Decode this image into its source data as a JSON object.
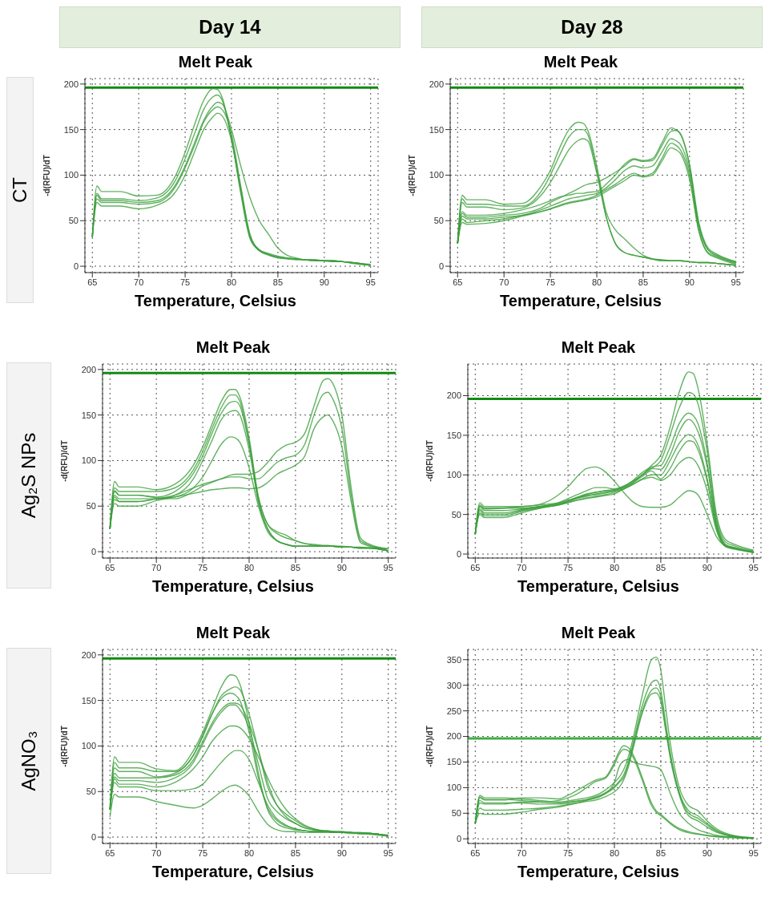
{
  "chart_data": [
    {
      "type": "line",
      "title": "Melt Peak",
      "xlabel": "Temperature, Celsius",
      "ylabel": "-d(RFU)/dT",
      "annotations": [
        "Day 14",
        "CT"
      ],
      "xlim": [
        64.2,
        95.8
      ],
      "xticks": [
        65,
        70,
        75,
        80,
        85,
        90,
        95
      ],
      "ylim": [
        -7,
        206
      ],
      "yticks": [
        0,
        50,
        100,
        150,
        200
      ],
      "grid": true,
      "marker": "none",
      "line_style": "solid",
      "ref_lines": [
        {
          "axis": "y",
          "value": 196,
          "color": "#138a13"
        }
      ],
      "x": [
        65,
        65.5,
        66,
        68,
        70,
        72,
        74,
        75,
        76,
        77,
        78,
        78.5,
        79,
        80,
        81,
        82,
        83,
        84,
        85,
        86,
        87,
        88,
        88.5,
        89,
        90,
        91,
        92,
        93,
        95
      ],
      "series": [
        {
          "color": "#3c9f3c",
          "values": [
            32,
            88,
            82,
            82,
            77,
            78,
            100,
            125,
            155,
            182,
            195,
            194,
            185,
            140,
            80,
            30,
            17,
            13,
            10,
            9,
            8,
            7,
            7,
            7,
            6,
            6,
            5,
            4,
            1
          ]
        },
        {
          "color": "#3c9f3c",
          "values": [
            32,
            80,
            74,
            74,
            72,
            75,
            95,
            118,
            145,
            172,
            186,
            188,
            182,
            140,
            82,
            32,
            18,
            14,
            11,
            9,
            8,
            7,
            7,
            7,
            6,
            6,
            5,
            4,
            1
          ]
        },
        {
          "color": "#3c9f3c",
          "values": [
            32,
            78,
            72,
            72,
            70,
            72,
            90,
            110,
            135,
            160,
            176,
            180,
            178,
            150,
            110,
            75,
            50,
            35,
            20,
            12,
            9,
            7,
            7,
            7,
            6,
            6,
            5,
            4,
            2
          ]
        },
        {
          "color": "#3c9f3c",
          "values": [
            32,
            74,
            70,
            70,
            68,
            70,
            88,
            108,
            132,
            158,
            172,
            175,
            172,
            145,
            88,
            35,
            18,
            13,
            10,
            9,
            8,
            7,
            7,
            6,
            6,
            5,
            5,
            4,
            1
          ]
        },
        {
          "color": "#3c9f3c",
          "values": [
            32,
            70,
            66,
            66,
            63,
            67,
            82,
            100,
            125,
            150,
            164,
            168,
            165,
            138,
            85,
            33,
            17,
            12,
            9,
            8,
            7,
            7,
            6,
            6,
            6,
            5,
            5,
            3,
            1
          ]
        }
      ]
    },
    {
      "type": "line",
      "title": "Melt Peak",
      "xlabel": "Temperature, Celsius",
      "ylabel": "-d(RFU)/dT",
      "annotations": [
        "Day 28"
      ],
      "xlim": [
        64.2,
        95.8
      ],
      "xticks": [
        65,
        70,
        75,
        80,
        85,
        90,
        95
      ],
      "ylim": [
        -7,
        206
      ],
      "yticks": [
        0,
        50,
        100,
        150,
        200
      ],
      "grid": true,
      "marker": "none",
      "line_style": "solid",
      "ref_lines": [
        {
          "axis": "y",
          "value": 196,
          "color": "#138a13"
        }
      ],
      "x": [
        65,
        65.5,
        66,
        68,
        70,
        72,
        74,
        75,
        76,
        77,
        78,
        78.5,
        79,
        80,
        81,
        82,
        83,
        84,
        85,
        86,
        87,
        88,
        88.5,
        89,
        90,
        91,
        92,
        93,
        95
      ],
      "series": [
        {
          "color": "#3c9f3c",
          "values": [
            25,
            78,
            73,
            73,
            68,
            69,
            88,
            105,
            130,
            150,
            158,
            157,
            150,
            110,
            60,
            40,
            30,
            20,
            12,
            8,
            6,
            6,
            6,
            6,
            5,
            4,
            4,
            3,
            1
          ]
        },
        {
          "color": "#3c9f3c",
          "values": [
            25,
            74,
            68,
            68,
            66,
            66,
            82,
            100,
            122,
            142,
            150,
            150,
            145,
            105,
            55,
            25,
            15,
            12,
            10,
            8,
            7,
            6,
            6,
            6,
            5,
            4,
            4,
            3,
            1
          ]
        },
        {
          "color": "#3c9f3c",
          "values": [
            25,
            70,
            65,
            65,
            62,
            64,
            78,
            92,
            110,
            128,
            138,
            140,
            138,
            102,
            55,
            25,
            15,
            12,
            10,
            8,
            7,
            6,
            6,
            6,
            5,
            4,
            4,
            3,
            1
          ]
        },
        {
          "color": "#3c9f3c",
          "values": [
            25,
            60,
            56,
            56,
            58,
            62,
            68,
            72,
            76,
            78,
            80,
            80,
            81,
            82,
            90,
            100,
            112,
            118,
            116,
            118,
            135,
            152,
            150,
            146,
            110,
            45,
            18,
            12,
            5
          ]
        },
        {
          "color": "#3c9f3c",
          "values": [
            25,
            58,
            54,
            54,
            56,
            58,
            64,
            70,
            75,
            80,
            85,
            88,
            90,
            92,
            97,
            103,
            110,
            117,
            115,
            116,
            132,
            148,
            149,
            145,
            112,
            48,
            20,
            13,
            5
          ]
        },
        {
          "color": "#3c9f3c",
          "values": [
            25,
            55,
            52,
            52,
            54,
            56,
            62,
            66,
            70,
            74,
            76,
            77,
            78,
            80,
            86,
            95,
            105,
            110,
            108,
            110,
            125,
            140,
            138,
            134,
            105,
            45,
            18,
            11,
            4
          ]
        },
        {
          "color": "#3c9f3c",
          "values": [
            25,
            52,
            48,
            50,
            52,
            56,
            60,
            63,
            67,
            70,
            72,
            73,
            74,
            78,
            84,
            90,
            97,
            102,
            99,
            102,
            118,
            135,
            133,
            128,
            100,
            40,
            15,
            10,
            3
          ]
        },
        {
          "color": "#3c9f3c",
          "values": [
            25,
            48,
            46,
            47,
            50,
            55,
            60,
            63,
            66,
            69,
            71,
            72,
            73,
            76,
            82,
            88,
            94,
            100,
            98,
            100,
            115,
            130,
            128,
            124,
            95,
            38,
            14,
            9,
            2
          ]
        }
      ]
    },
    {
      "type": "line",
      "title": "Melt Peak",
      "xlabel": "Temperature, Celsius",
      "ylabel": "-d(RFU)/dT",
      "annotations": [
        "Ag₂S NPs"
      ],
      "xlim": [
        64.2,
        95.8
      ],
      "xticks": [
        65,
        70,
        75,
        80,
        85,
        90,
        95
      ],
      "ylim": [
        -7,
        206
      ],
      "yticks": [
        0,
        50,
        100,
        150,
        200
      ],
      "grid": true,
      "marker": "none",
      "line_style": "solid",
      "ref_lines": [
        {
          "axis": "y",
          "value": 196,
          "color": "#138a13"
        }
      ],
      "x": [
        65,
        65.5,
        66,
        68,
        70,
        72,
        74,
        75,
        76,
        77,
        78,
        78.5,
        79,
        80,
        81,
        82,
        83,
        84,
        85,
        86,
        87,
        88,
        88.5,
        89,
        90,
        91,
        92,
        93,
        95
      ],
      "series": [
        {
          "color": "#3c9f3c",
          "values": [
            25,
            77,
            71,
            71,
            68,
            74,
            95,
            115,
            140,
            165,
            178,
            178,
            170,
            125,
            60,
            30,
            20,
            15,
            12,
            9,
            8,
            7,
            7,
            6,
            6,
            5,
            5,
            4,
            1
          ]
        },
        {
          "color": "#3c9f3c",
          "values": [
            25,
            70,
            66,
            66,
            66,
            70,
            90,
            110,
            135,
            158,
            172,
            172,
            165,
            120,
            55,
            25,
            12,
            8,
            6,
            6,
            6,
            6,
            6,
            6,
            5,
            5,
            4,
            4,
            1
          ]
        },
        {
          "color": "#3c9f3c",
          "values": [
            25,
            67,
            62,
            62,
            60,
            66,
            86,
            105,
            130,
            152,
            164,
            165,
            160,
            118,
            60,
            30,
            22,
            18,
            12,
            9,
            7,
            6,
            6,
            6,
            5,
            5,
            4,
            4,
            1
          ]
        },
        {
          "color": "#3c9f3c",
          "values": [
            25,
            62,
            58,
            58,
            58,
            62,
            80,
            100,
            122,
            145,
            154,
            155,
            150,
            112,
            55,
            25,
            12,
            8,
            6,
            6,
            6,
            6,
            6,
            6,
            5,
            5,
            4,
            4,
            1
          ]
        },
        {
          "color": "#3c9f3c",
          "values": [
            25,
            57,
            55,
            55,
            58,
            60,
            70,
            82,
            100,
            118,
            126,
            125,
            120,
            92,
            50,
            22,
            12,
            8,
            6,
            6,
            6,
            6,
            6,
            6,
            5,
            5,
            4,
            4,
            1
          ]
        },
        {
          "color": "#3c9f3c",
          "values": [
            25,
            66,
            62,
            62,
            59,
            58,
            66,
            72,
            76,
            80,
            84,
            85,
            85,
            85,
            88,
            98,
            110,
            117,
            120,
            130,
            160,
            188,
            190,
            185,
            150,
            70,
            15,
            8,
            3
          ]
        },
        {
          "color": "#3c9f3c",
          "values": [
            25,
            60,
            55,
            55,
            58,
            62,
            70,
            74,
            77,
            80,
            82,
            82,
            82,
            80,
            80,
            88,
            98,
            103,
            106,
            118,
            150,
            173,
            175,
            168,
            135,
            62,
            12,
            7,
            3
          ]
        },
        {
          "color": "#3c9f3c",
          "values": [
            25,
            53,
            50,
            50,
            56,
            60,
            64,
            66,
            68,
            69,
            70,
            70,
            70,
            69,
            70,
            76,
            85,
            90,
            95,
            105,
            135,
            148,
            150,
            144,
            115,
            55,
            10,
            6,
            3
          ]
        }
      ]
    },
    {
      "type": "line",
      "title": "Melt Peak",
      "xlabel": "Temperature, Celsius",
      "ylabel": "-d(RFU)/dT",
      "xlim": [
        64.2,
        95.8
      ],
      "xticks": [
        65,
        70,
        75,
        80,
        85,
        90,
        95
      ],
      "ylim": [
        -5,
        240
      ],
      "yticks": [
        0,
        50,
        100,
        150,
        200
      ],
      "grid": true,
      "marker": "none",
      "line_style": "solid",
      "ref_lines": [
        {
          "axis": "y",
          "value": 196,
          "color": "#138a13"
        }
      ],
      "x": [
        65,
        65.5,
        66,
        68,
        70,
        72,
        74,
        75,
        76,
        77,
        78,
        78.5,
        79,
        80,
        81,
        82,
        83,
        84,
        85,
        86,
        87,
        88,
        88.5,
        89,
        90,
        91,
        92,
        93,
        95
      ],
      "series": [
        {
          "color": "#3c9f3c",
          "values": [
            25,
            60,
            57,
            58,
            60,
            63,
            75,
            85,
            98,
            108,
            110,
            108,
            104,
            92,
            78,
            66,
            60,
            59,
            59,
            62,
            72,
            80,
            79,
            75,
            50,
            22,
            10,
            7,
            2
          ]
        },
        {
          "color": "#3c9f3c",
          "values": [
            25,
            65,
            60,
            60,
            60,
            62,
            65,
            68,
            72,
            76,
            78,
            79,
            80,
            82,
            86,
            92,
            100,
            112,
            125,
            160,
            205,
            230,
            228,
            210,
            140,
            50,
            18,
            12,
            5
          ]
        },
        {
          "color": "#3c9f3c",
          "values": [
            25,
            62,
            58,
            58,
            58,
            60,
            64,
            67,
            71,
            74,
            76,
            77,
            78,
            80,
            85,
            92,
            100,
            108,
            118,
            150,
            185,
            204,
            202,
            190,
            130,
            45,
            15,
            10,
            4
          ]
        },
        {
          "color": "#3c9f3c",
          "values": [
            25,
            60,
            55,
            55,
            57,
            60,
            63,
            66,
            70,
            73,
            75,
            76,
            77,
            80,
            85,
            93,
            103,
            110,
            112,
            135,
            165,
            178,
            175,
            165,
            115,
            40,
            12,
            8,
            3
          ]
        },
        {
          "color": "#3c9f3c",
          "values": [
            25,
            57,
            52,
            52,
            56,
            60,
            65,
            70,
            75,
            80,
            84,
            84,
            84,
            82,
            84,
            90,
            100,
            108,
            107,
            125,
            155,
            170,
            166,
            155,
            110,
            38,
            12,
            8,
            3
          ]
        },
        {
          "color": "#3c9f3c",
          "values": [
            25,
            55,
            50,
            50,
            55,
            59,
            62,
            65,
            68,
            70,
            72,
            73,
            74,
            76,
            82,
            88,
            95,
            100,
            100,
            118,
            140,
            151,
            148,
            138,
            95,
            35,
            10,
            7,
            2
          ]
        },
        {
          "color": "#3c9f3c",
          "values": [
            25,
            52,
            48,
            48,
            54,
            58,
            63,
            67,
            71,
            75,
            78,
            79,
            80,
            80,
            83,
            90,
            98,
            105,
            95,
            108,
            130,
            143,
            142,
            132,
            92,
            32,
            10,
            7,
            2
          ]
        },
        {
          "color": "#3c9f3c",
          "values": [
            25,
            50,
            46,
            46,
            52,
            58,
            62,
            65,
            68,
            71,
            73,
            74,
            75,
            78,
            82,
            88,
            94,
            97,
            93,
            100,
            115,
            122,
            120,
            112,
            80,
            30,
            9,
            6,
            2
          ]
        }
      ]
    },
    {
      "type": "line",
      "title": "Melt Peak",
      "xlabel": "Temperature, Celsius",
      "ylabel": "-d(RFU)/dT",
      "annotations": [
        "AgNO₃"
      ],
      "xlim": [
        64.2,
        95.8
      ],
      "xticks": [
        65,
        70,
        75,
        80,
        85,
        90,
        95
      ],
      "ylim": [
        -7,
        206
      ],
      "yticks": [
        0,
        50,
        100,
        150,
        200
      ],
      "grid": true,
      "marker": "none",
      "line_style": "solid",
      "ref_lines": [
        {
          "axis": "y",
          "value": 196,
          "color": "#138a13"
        }
      ],
      "x": [
        65,
        65.5,
        66,
        68,
        70,
        72,
        74,
        75,
        76,
        77,
        78,
        78.5,
        79,
        80,
        81,
        82,
        83,
        84,
        85,
        86,
        87,
        88,
        88.5,
        89,
        90,
        91,
        92,
        93,
        95
      ],
      "series": [
        {
          "color": "#3c9f3c",
          "values": [
            30,
            88,
            82,
            82,
            75,
            73,
            95,
            115,
            140,
            165,
            178,
            177,
            168,
            125,
            70,
            30,
            15,
            10,
            8,
            7,
            6,
            6,
            6,
            5,
            5,
            5,
            4,
            4,
            1
          ]
        },
        {
          "color": "#3c9f3c",
          "values": [
            30,
            82,
            76,
            76,
            72,
            72,
            90,
            110,
            135,
            155,
            163,
            165,
            162,
            135,
            95,
            55,
            35,
            25,
            18,
            12,
            9,
            7,
            7,
            6,
            6,
            5,
            5,
            4,
            2
          ]
        },
        {
          "color": "#3c9f3c",
          "values": [
            30,
            76,
            72,
            72,
            66,
            70,
            90,
            112,
            135,
            152,
            158,
            156,
            150,
            115,
            65,
            32,
            18,
            12,
            9,
            7,
            6,
            6,
            6,
            5,
            5,
            5,
            4,
            4,
            1
          ]
        },
        {
          "color": "#3c9f3c",
          "values": [
            30,
            70,
            65,
            65,
            65,
            68,
            85,
            105,
            125,
            140,
            147,
            147,
            145,
            125,
            95,
            60,
            35,
            22,
            15,
            10,
            8,
            7,
            6,
            6,
            5,
            5,
            4,
            4,
            1
          ]
        },
        {
          "color": "#3c9f3c",
          "values": [
            30,
            66,
            62,
            62,
            60,
            65,
            82,
            102,
            122,
            137,
            145,
            145,
            140,
            120,
            80,
            42,
            28,
            20,
            15,
            10,
            8,
            6,
            6,
            6,
            5,
            5,
            4,
            4,
            1
          ]
        },
        {
          "color": "#3c9f3c",
          "values": [
            30,
            64,
            58,
            58,
            55,
            60,
            75,
            88,
            105,
            116,
            122,
            122,
            120,
            108,
            88,
            65,
            45,
            30,
            20,
            13,
            9,
            7,
            7,
            6,
            6,
            5,
            5,
            4,
            2
          ]
        },
        {
          "color": "#3c9f3c",
          "values": [
            30,
            60,
            55,
            55,
            51,
            51,
            53,
            58,
            70,
            82,
            92,
            95,
            95,
            85,
            60,
            35,
            20,
            13,
            9,
            7,
            6,
            6,
            6,
            5,
            5,
            5,
            4,
            4,
            1
          ]
        },
        {
          "color": "#3c9f3c",
          "values": [
            22,
            47,
            44,
            44,
            39,
            35,
            32,
            35,
            42,
            50,
            56,
            57,
            55,
            45,
            28,
            14,
            8,
            6,
            6,
            5,
            5,
            5,
            5,
            5,
            5,
            4,
            4,
            3,
            1
          ]
        }
      ]
    },
    {
      "type": "line",
      "title": "Melt Peak",
      "xlabel": "Temperature, Celsius",
      "ylabel": "-d(RFU)/dT",
      "xlim": [
        64.2,
        95.8
      ],
      "xticks": [
        65,
        70,
        75,
        80,
        85,
        90,
        95
      ],
      "ylim": [
        -9,
        370
      ],
      "yticks": [
        0,
        50,
        100,
        150,
        200,
        250,
        300,
        350
      ],
      "grid": true,
      "marker": "none",
      "line_style": "solid",
      "ref_lines": [
        {
          "axis": "y",
          "value": 196,
          "color": "#3fae3f"
        }
      ],
      "x": [
        65,
        65.5,
        66,
        68,
        70,
        72,
        74,
        75,
        76,
        77,
        78,
        79,
        80,
        80.5,
        81,
        81.5,
        82,
        83,
        84,
        84.5,
        85,
        85.5,
        86,
        87,
        88,
        89,
        90,
        91,
        93,
        95
      ],
      "series": [
        {
          "color": "#3c9f3c",
          "values": [
            30,
            85,
            80,
            80,
            78,
            75,
            72,
            74,
            77,
            80,
            85,
            95,
            110,
            120,
            135,
            160,
            195,
            280,
            350,
            355,
            330,
            260,
            190,
            100,
            65,
            55,
            35,
            20,
            6,
            2
          ]
        },
        {
          "color": "#3c9f3c",
          "values": [
            30,
            82,
            77,
            77,
            75,
            72,
            70,
            72,
            74,
            77,
            82,
            90,
            102,
            112,
            125,
            150,
            185,
            260,
            305,
            310,
            290,
            230,
            170,
            90,
            55,
            45,
            30,
            17,
            5,
            2
          ]
        },
        {
          "color": "#3c9f3c",
          "values": [
            30,
            75,
            70,
            70,
            70,
            68,
            68,
            70,
            73,
            76,
            80,
            88,
            100,
            110,
            120,
            145,
            180,
            250,
            290,
            295,
            278,
            220,
            165,
            88,
            50,
            40,
            27,
            15,
            4,
            1
          ]
        },
        {
          "color": "#3c9f3c",
          "values": [
            30,
            60,
            56,
            56,
            58,
            60,
            64,
            67,
            70,
            73,
            76,
            82,
            92,
            100,
            115,
            140,
            175,
            245,
            283,
            285,
            268,
            215,
            160,
            85,
            45,
            35,
            23,
            13,
            4,
            1
          ]
        },
        {
          "color": "#3c9f3c",
          "values": [
            30,
            80,
            76,
            76,
            80,
            80,
            78,
            85,
            95,
            105,
            115,
            120,
            150,
            170,
            182,
            178,
            165,
            120,
            70,
            55,
            48,
            40,
            32,
            20,
            14,
            10,
            7,
            5,
            3,
            1
          ]
        },
        {
          "color": "#3c9f3c",
          "values": [
            30,
            70,
            68,
            68,
            72,
            72,
            75,
            80,
            88,
            100,
            112,
            118,
            145,
            165,
            175,
            172,
            160,
            115,
            65,
            52,
            45,
            38,
            30,
            18,
            12,
            9,
            6,
            4,
            2,
            1
          ]
        },
        {
          "color": "#3c9f3c",
          "values": [
            30,
            50,
            48,
            48,
            52,
            58,
            62,
            66,
            70,
            75,
            80,
            88,
            110,
            140,
            152,
            155,
            150,
            145,
            142,
            140,
            135,
            115,
            90,
            50,
            30,
            18,
            12,
            7,
            3,
            1
          ]
        }
      ]
    }
  ]
}
